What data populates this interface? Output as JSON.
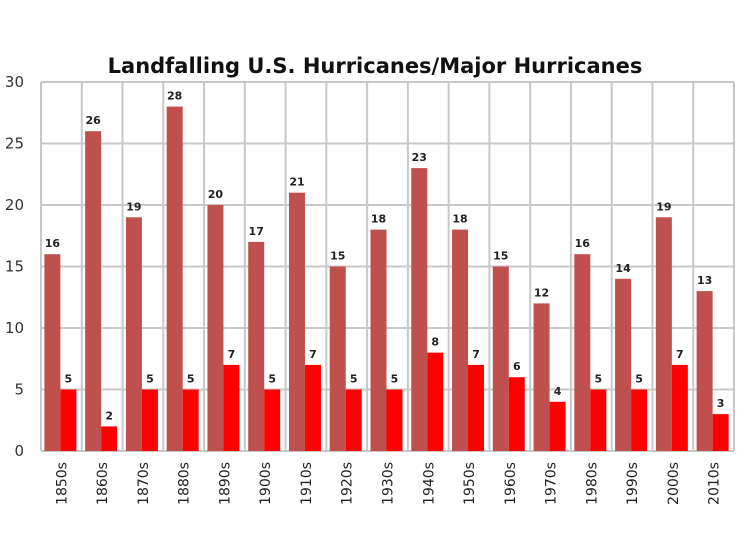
{
  "chart_data": {
    "type": "bar",
    "title": "Landfalling U.S. Hurricanes/Major Hurricanes",
    "xlabel": "",
    "ylabel": "",
    "ylim": [
      0,
      30
    ],
    "yticks": [
      0,
      5,
      10,
      15,
      20,
      25,
      30
    ],
    "grid": true,
    "legend": "none",
    "categories": [
      "1850s",
      "1860s",
      "1870s",
      "1880s",
      "1890s",
      "1900s",
      "1910s",
      "1920s",
      "1930s",
      "1940s",
      "1950s",
      "1960s",
      "1970s",
      "1980s",
      "1990s",
      "2000s",
      "2010s"
    ],
    "series": [
      {
        "name": "Hurricanes",
        "color": "#c0504d",
        "values": [
          16,
          26,
          19,
          28,
          20,
          17,
          21,
          15,
          18,
          23,
          18,
          15,
          12,
          16,
          14,
          19,
          13
        ]
      },
      {
        "name": "Major Hurricanes",
        "color": "#ff0000",
        "values": [
          5,
          2,
          5,
          5,
          7,
          5,
          7,
          5,
          5,
          8,
          7,
          6,
          4,
          5,
          5,
          7,
          3
        ]
      }
    ],
    "data_labels": true
  }
}
